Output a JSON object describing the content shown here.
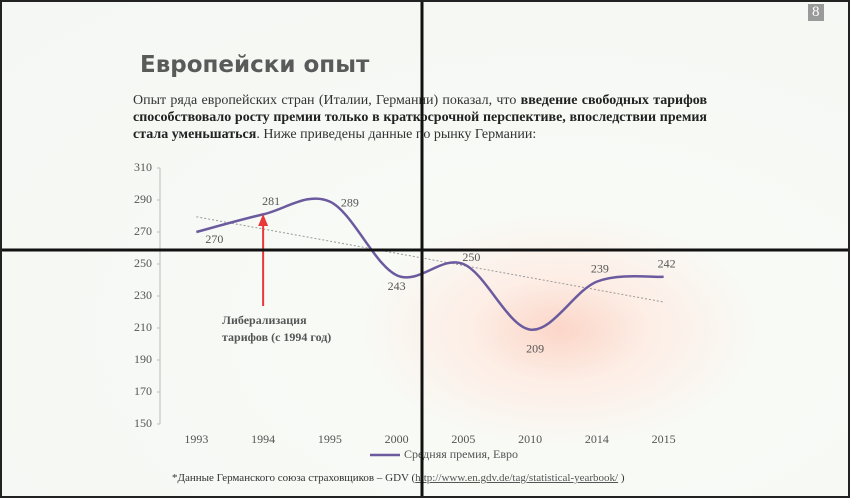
{
  "slide": {
    "page_number": "8",
    "title": "Европейски опыт",
    "text_parts": [
      {
        "text": "Опыт ряда европейских стран (Италии, Германии) показал, что ",
        "bold": false
      },
      {
        "text": "введение свободных тарифов способствовало росту премии только в краткосрочной перспективе, впоследствии премия стала уменьшаться",
        "bold": true
      },
      {
        "text": ". Ниже приведены данные по рынку Германии:",
        "bold": false
      }
    ],
    "footnote": "*Данные Германского союза страховщиков – GDV (",
    "footnote_link": "http://www.en.gdv.de/tag/statistical-yearbook/",
    "footnote_end": " )"
  },
  "chart_data": {
    "type": "line",
    "categories": [
      "1993",
      "1994",
      "1995",
      "2000",
      "2005",
      "2010",
      "2014",
      "2015"
    ],
    "series": [
      {
        "name": "Средняя премия, Евро",
        "color": "#6b5b9e",
        "values": [
          270,
          281,
          289,
          243,
          250,
          209,
          239,
          242
        ]
      }
    ],
    "ylim": [
      150,
      310
    ],
    "yticks": [
      150,
      170,
      190,
      210,
      230,
      250,
      270,
      290,
      310
    ],
    "smooth": true,
    "trendline": true,
    "annotation": {
      "text": "Либерализация тарифов (с 1994 год)",
      "category_index": 1,
      "color": "#e8383a"
    }
  }
}
